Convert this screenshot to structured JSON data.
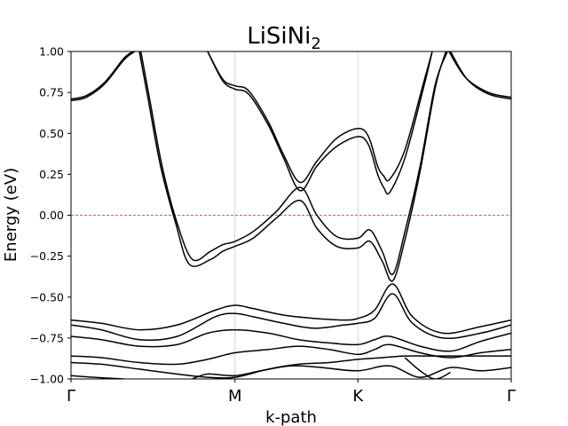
{
  "chart_data": {
    "type": "line",
    "title": "LiSiNi",
    "title_subscript": "2",
    "xlabel": "k-path",
    "ylabel": "Energy (eV)",
    "ylim": [
      -1.0,
      1.0
    ],
    "xlim": [
      0,
      2.9
    ],
    "y_ticks": [
      -1.0,
      -0.75,
      -0.5,
      -0.25,
      0.0,
      0.25,
      0.5,
      0.75,
      1.0
    ],
    "y_tick_labels": [
      "−1.00",
      "−0.75",
      "−0.50",
      "−0.25",
      "0.00",
      "0.25",
      "0.50",
      "0.75",
      "1.00"
    ],
    "high_symmetry_points": [
      {
        "label": "Γ",
        "x": 0.0
      },
      {
        "label": "M",
        "x": 1.08
      },
      {
        "label": "K",
        "x": 1.89
      },
      {
        "label": "Γ",
        "x": 2.9
      }
    ],
    "fermi_level": 0.0,
    "fermi_color": "#d62728",
    "band_color": "#000000",
    "grid": "vertical lines at high-symmetry points",
    "series": [
      {
        "x": [
          0.0,
          0.1,
          0.22,
          0.35,
          0.42
        ],
        "y": [
          0.7,
          0.72,
          0.8,
          0.95,
          1.0
        ]
      },
      {
        "x": [
          0.0,
          0.1,
          0.22,
          0.35,
          0.41
        ],
        "y": [
          0.71,
          0.73,
          0.81,
          0.96,
          1.0
        ]
      },
      {
        "x": [
          0.9,
          1.0,
          1.08,
          1.17,
          1.3,
          1.4,
          1.51,
          1.62,
          1.75,
          1.89,
          1.96,
          2.02,
          2.06,
          2.1,
          2.2,
          2.32,
          2.38
        ],
        "y": [
          1.0,
          0.83,
          0.79,
          0.76,
          0.57,
          0.37,
          0.2,
          0.33,
          0.47,
          0.53,
          0.48,
          0.3,
          0.24,
          0.22,
          0.4,
          0.8,
          1.0
        ]
      },
      {
        "x": [
          0.9,
          1.0,
          1.08,
          1.17,
          1.3,
          1.4,
          1.51,
          1.62,
          1.75,
          1.89,
          1.96,
          2.02,
          2.06,
          2.1,
          2.2,
          2.32,
          2.38
        ],
        "y": [
          1.0,
          0.82,
          0.77,
          0.74,
          0.55,
          0.35,
          0.15,
          0.3,
          0.42,
          0.48,
          0.43,
          0.25,
          0.17,
          0.14,
          0.35,
          0.77,
          1.0
        ]
      },
      {
        "x": [
          0.46,
          0.52,
          0.6,
          0.7,
          0.8,
          0.92,
          1.0,
          1.08,
          1.2,
          1.35,
          1.51,
          1.62,
          1.75,
          1.89,
          1.97,
          2.05,
          2.12,
          2.2,
          2.3,
          2.4,
          2.48
        ],
        "y": [
          1.0,
          0.7,
          0.3,
          -0.05,
          -0.27,
          -0.22,
          -0.18,
          -0.16,
          -0.1,
          0.02,
          0.17,
          0.0,
          -0.13,
          -0.14,
          -0.09,
          -0.22,
          -0.36,
          -0.1,
          0.3,
          0.8,
          1.0
        ]
      },
      {
        "x": [
          0.45,
          0.51,
          0.59,
          0.69,
          0.78,
          0.92,
          1.0,
          1.08,
          1.2,
          1.35,
          1.51,
          1.62,
          1.75,
          1.89,
          1.97,
          2.05,
          2.12,
          2.2,
          2.3,
          2.4,
          2.47
        ],
        "y": [
          1.0,
          0.7,
          0.3,
          -0.05,
          -0.3,
          -0.27,
          -0.22,
          -0.19,
          -0.14,
          -0.02,
          0.09,
          -0.08,
          -0.19,
          -0.2,
          -0.16,
          -0.28,
          -0.4,
          -0.15,
          0.27,
          0.78,
          1.0
        ]
      },
      {
        "x": [
          2.49,
          2.6,
          2.75,
          2.9
        ],
        "y": [
          1.0,
          0.84,
          0.75,
          0.72
        ]
      },
      {
        "x": [
          2.5,
          2.61,
          2.75,
          2.9
        ],
        "y": [
          1.0,
          0.83,
          0.74,
          0.71
        ]
      },
      {
        "x": [
          0.0,
          0.2,
          0.45,
          0.7,
          0.95,
          1.08,
          1.2,
          1.4,
          1.6,
          1.8,
          1.89,
          2.0,
          2.12,
          2.25,
          2.45,
          2.7,
          2.9
        ],
        "y": [
          -0.64,
          -0.66,
          -0.7,
          -0.67,
          -0.58,
          -0.55,
          -0.57,
          -0.61,
          -0.63,
          -0.64,
          -0.63,
          -0.58,
          -0.42,
          -0.62,
          -0.72,
          -0.68,
          -0.64
        ]
      },
      {
        "x": [
          0.0,
          0.2,
          0.45,
          0.7,
          0.95,
          1.08,
          1.2,
          1.4,
          1.6,
          1.8,
          1.89,
          2.0,
          2.12,
          2.25,
          2.45,
          2.7,
          2.9
        ],
        "y": [
          -0.67,
          -0.7,
          -0.76,
          -0.74,
          -0.62,
          -0.6,
          -0.62,
          -0.66,
          -0.69,
          -0.67,
          -0.66,
          -0.63,
          -0.48,
          -0.66,
          -0.75,
          -0.72,
          -0.67
        ]
      },
      {
        "x": [
          0.0,
          0.2,
          0.45,
          0.7,
          0.9,
          1.08,
          1.3,
          1.5,
          1.7,
          1.89,
          2.0,
          2.1,
          2.3,
          2.5,
          2.7,
          2.9
        ],
        "y": [
          -0.74,
          -0.76,
          -0.8,
          -0.79,
          -0.72,
          -0.7,
          -0.72,
          -0.76,
          -0.78,
          -0.79,
          -0.76,
          -0.74,
          -0.8,
          -0.83,
          -0.77,
          -0.72
        ]
      },
      {
        "x": [
          0.0,
          0.2,
          0.45,
          0.7,
          0.9,
          1.08,
          1.3,
          1.5,
          1.7,
          1.89,
          2.0,
          2.1,
          2.3,
          2.5,
          2.7,
          2.9
        ],
        "y": [
          -0.86,
          -0.87,
          -0.9,
          -0.91,
          -0.88,
          -0.84,
          -0.82,
          -0.8,
          -0.82,
          -0.85,
          -0.82,
          -0.79,
          -0.84,
          -0.87,
          -0.84,
          -0.82
        ]
      },
      {
        "x": [
          0.0,
          0.2,
          0.45,
          0.7,
          0.9,
          1.08,
          1.3,
          1.5,
          1.7,
          1.89,
          2.05,
          2.2,
          2.4,
          2.6,
          2.75,
          2.9
        ],
        "y": [
          -0.9,
          -0.91,
          -0.94,
          -0.97,
          -0.99,
          -0.99,
          -0.94,
          -0.91,
          -0.9,
          -0.88,
          -0.87,
          -0.86,
          -0.86,
          -0.86,
          -0.86,
          -0.86
        ]
      },
      {
        "x": [
          0.0,
          0.15,
          0.35
        ],
        "y": [
          -0.98,
          -0.99,
          -1.0
        ]
      },
      {
        "x": [
          0.8,
          0.9,
          1.08,
          1.25,
          1.45,
          1.65,
          1.89,
          2.1,
          2.3,
          2.5,
          2.7,
          2.9
        ],
        "y": [
          -1.0,
          -0.97,
          -0.98,
          -0.95,
          -0.92,
          -0.93,
          -0.95,
          -0.92,
          -0.99,
          -0.93,
          -0.95,
          -0.93
        ]
      },
      {
        "x": [
          2.2,
          2.3,
          2.4,
          2.5
        ],
        "y": [
          -0.87,
          -0.95,
          -1.0,
          -0.96
        ]
      }
    ]
  }
}
